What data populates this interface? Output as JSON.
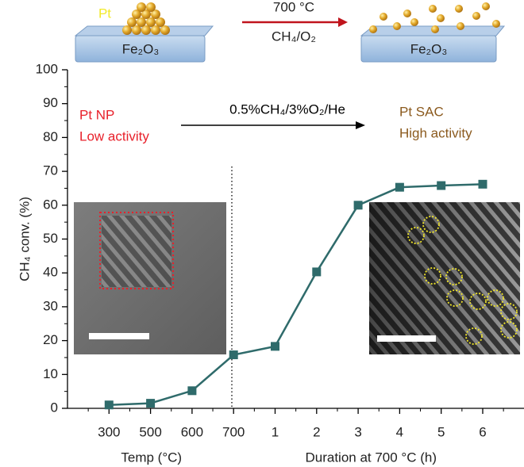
{
  "chart_data": {
    "type": "line",
    "categories": [
      "300",
      "500",
      "600",
      "700",
      "1",
      "2",
      "3",
      "4",
      "5",
      "6"
    ],
    "values": [
      1,
      1.5,
      5.2,
      15.8,
      18.3,
      40.3,
      60,
      65.3,
      65.8,
      66.2
    ],
    "color": "#2f6b6b",
    "ylabel": "CH₄ conv. (%)",
    "xlabels": [
      "Temp (°C)",
      "Duration at  700 °C (h)"
    ],
    "ylim": [
      0,
      100
    ],
    "yticks": [
      0,
      10,
      20,
      30,
      40,
      50,
      60,
      70,
      80,
      90,
      100
    ],
    "annotations": [
      {
        "lines": [
          "Pt NP",
          "Low activity"
        ],
        "color": "#e8202a"
      },
      {
        "text": "0.5%CH₄/3%O₂/He",
        "color": "#000000"
      },
      {
        "lines": [
          "Pt SAC",
          "High activity"
        ],
        "color": "#8b5a1e"
      }
    ]
  },
  "scheme": {
    "particle_label": "Pt",
    "support_left": "Fe₂O₃",
    "condition_top": "700 °C",
    "condition_bottom": "CH₄/O₂",
    "support_right": "Fe₂O₃"
  }
}
